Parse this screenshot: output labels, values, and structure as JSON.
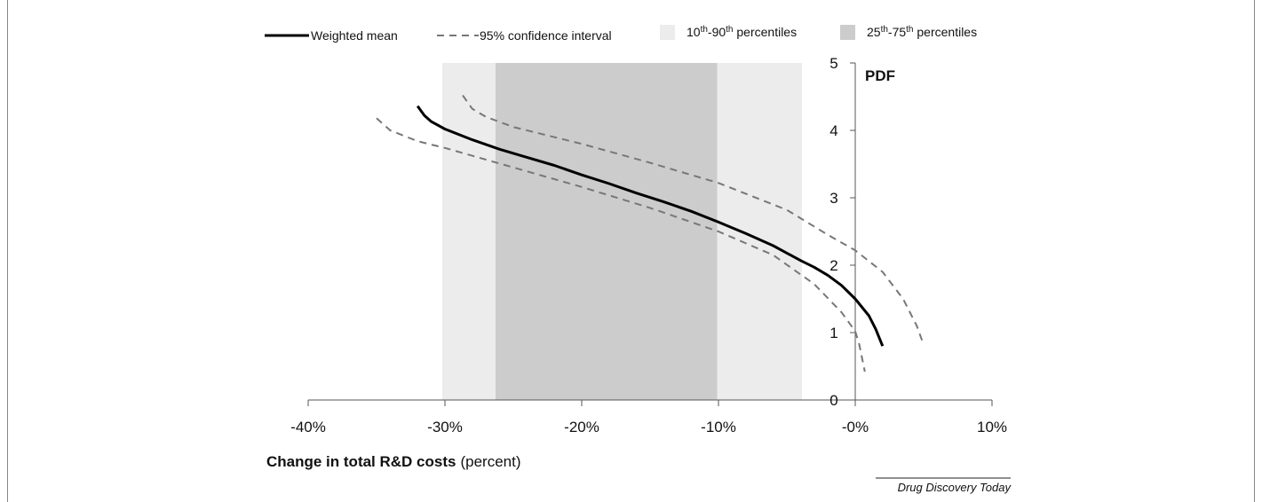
{
  "chart_data": {
    "type": "line",
    "x_axis": {
      "label_bold": "Change in total R&D costs",
      "label_unit": "(percent)",
      "min": -0.4,
      "max": 0.1,
      "ticks": [
        -0.4,
        -0.3,
        -0.2,
        -0.1,
        0.0,
        0.1
      ],
      "tick_labels": [
        "-40%",
        "-30%",
        "-20%",
        "-10%",
        "-0%",
        "10%"
      ]
    },
    "y_axis": {
      "label": "PDF",
      "min": 0,
      "max": 5,
      "ticks": [
        0,
        1,
        2,
        3,
        4,
        5
      ],
      "tick_labels": [
        "0",
        "1",
        "2",
        "3",
        "4",
        "5"
      ],
      "crosses_at_x": 0.0
    },
    "legend": {
      "placement": "top",
      "items": {
        "mean": "Weighted mean",
        "ci": "95% confidence interval",
        "p10_90_a": "10",
        "p10_90_sup1": "th",
        "p10_90_b": "-90",
        "p10_90_sup2": "th",
        "p10_90_c": " percentiles",
        "p25_75_a": "25",
        "p25_75_sup1": "th",
        "p25_75_b": "-75",
        "p25_75_sup2": "th",
        "p25_75_c": " percentiles"
      }
    },
    "bands": [
      {
        "name": "10th-90th percentiles",
        "x_from": -0.302,
        "x_to": -0.039,
        "color": "#ececec"
      },
      {
        "name": "25th-75th percentiles",
        "x_from": -0.263,
        "x_to": -0.101,
        "color": "#cccccc"
      }
    ],
    "series": [
      {
        "name": "Weighted mean",
        "style": "solid",
        "color": "#000000",
        "points": [
          [
            -0.32,
            4.36
          ],
          [
            -0.315,
            4.22
          ],
          [
            -0.31,
            4.13
          ],
          [
            -0.3,
            4.02
          ],
          [
            -0.28,
            3.86
          ],
          [
            -0.26,
            3.72
          ],
          [
            -0.24,
            3.6
          ],
          [
            -0.22,
            3.48
          ],
          [
            -0.2,
            3.34
          ],
          [
            -0.18,
            3.21
          ],
          [
            -0.16,
            3.07
          ],
          [
            -0.14,
            2.94
          ],
          [
            -0.12,
            2.8
          ],
          [
            -0.1,
            2.64
          ],
          [
            -0.08,
            2.47
          ],
          [
            -0.06,
            2.29
          ],
          [
            -0.04,
            2.07
          ],
          [
            -0.03,
            1.97
          ],
          [
            -0.02,
            1.85
          ],
          [
            -0.01,
            1.7
          ],
          [
            0.0,
            1.5
          ],
          [
            0.01,
            1.25
          ],
          [
            0.015,
            1.05
          ],
          [
            0.02,
            0.8
          ]
        ]
      },
      {
        "name": "95% CI upper",
        "style": "dashed",
        "color": "#777777",
        "points": [
          [
            -0.287,
            4.52
          ],
          [
            -0.28,
            4.32
          ],
          [
            -0.27,
            4.2
          ],
          [
            -0.25,
            4.05
          ],
          [
            -0.2,
            3.8
          ],
          [
            -0.15,
            3.52
          ],
          [
            -0.1,
            3.22
          ],
          [
            -0.05,
            2.82
          ],
          [
            -0.02,
            2.45
          ],
          [
            0.0,
            2.22
          ],
          [
            0.02,
            1.9
          ],
          [
            0.035,
            1.5
          ],
          [
            0.045,
            1.1
          ],
          [
            0.05,
            0.82
          ]
        ]
      },
      {
        "name": "95% CI lower",
        "style": "dashed",
        "color": "#777777",
        "points": [
          [
            -0.35,
            4.18
          ],
          [
            -0.34,
            4.0
          ],
          [
            -0.32,
            3.84
          ],
          [
            -0.3,
            3.74
          ],
          [
            -0.25,
            3.45
          ],
          [
            -0.2,
            3.16
          ],
          [
            -0.15,
            2.85
          ],
          [
            -0.1,
            2.5
          ],
          [
            -0.06,
            2.15
          ],
          [
            -0.03,
            1.72
          ],
          [
            -0.01,
            1.3
          ],
          [
            0.0,
            1.02
          ],
          [
            0.003,
            0.82
          ],
          [
            0.005,
            0.62
          ],
          [
            0.007,
            0.42
          ]
        ]
      }
    ]
  },
  "source": "Drug Discovery Today"
}
